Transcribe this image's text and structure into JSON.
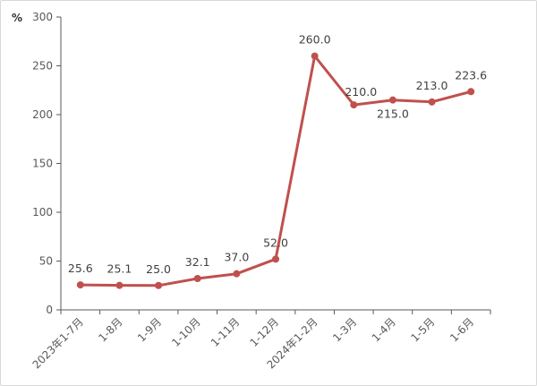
{
  "chart_data": {
    "type": "line",
    "ylabel": "%",
    "ylim": [
      0,
      300
    ],
    "yticks": [
      0,
      50,
      100,
      150,
      200,
      250,
      300
    ],
    "categories": [
      "2023年1-7月",
      "1-8月",
      "1-9月",
      "1-10月",
      "1-11月",
      "1-12月",
      "2024年1-2月",
      "1-3月",
      "1-4月",
      "1-5月",
      "1-6月"
    ],
    "series": [
      {
        "values": [
          25.6,
          25.1,
          25.0,
          32.1,
          37.0,
          52.0,
          260.0,
          210.0,
          215.0,
          213.0,
          223.6
        ],
        "labels": [
          "25.6",
          "25.1",
          "25.0",
          "32.1",
          "37.0",
          "52.0",
          "260.0",
          "210.0",
          "215.0",
          "213.0",
          "223.6"
        ],
        "color": "#c0504d"
      }
    ],
    "grid": false,
    "legend": "none"
  }
}
